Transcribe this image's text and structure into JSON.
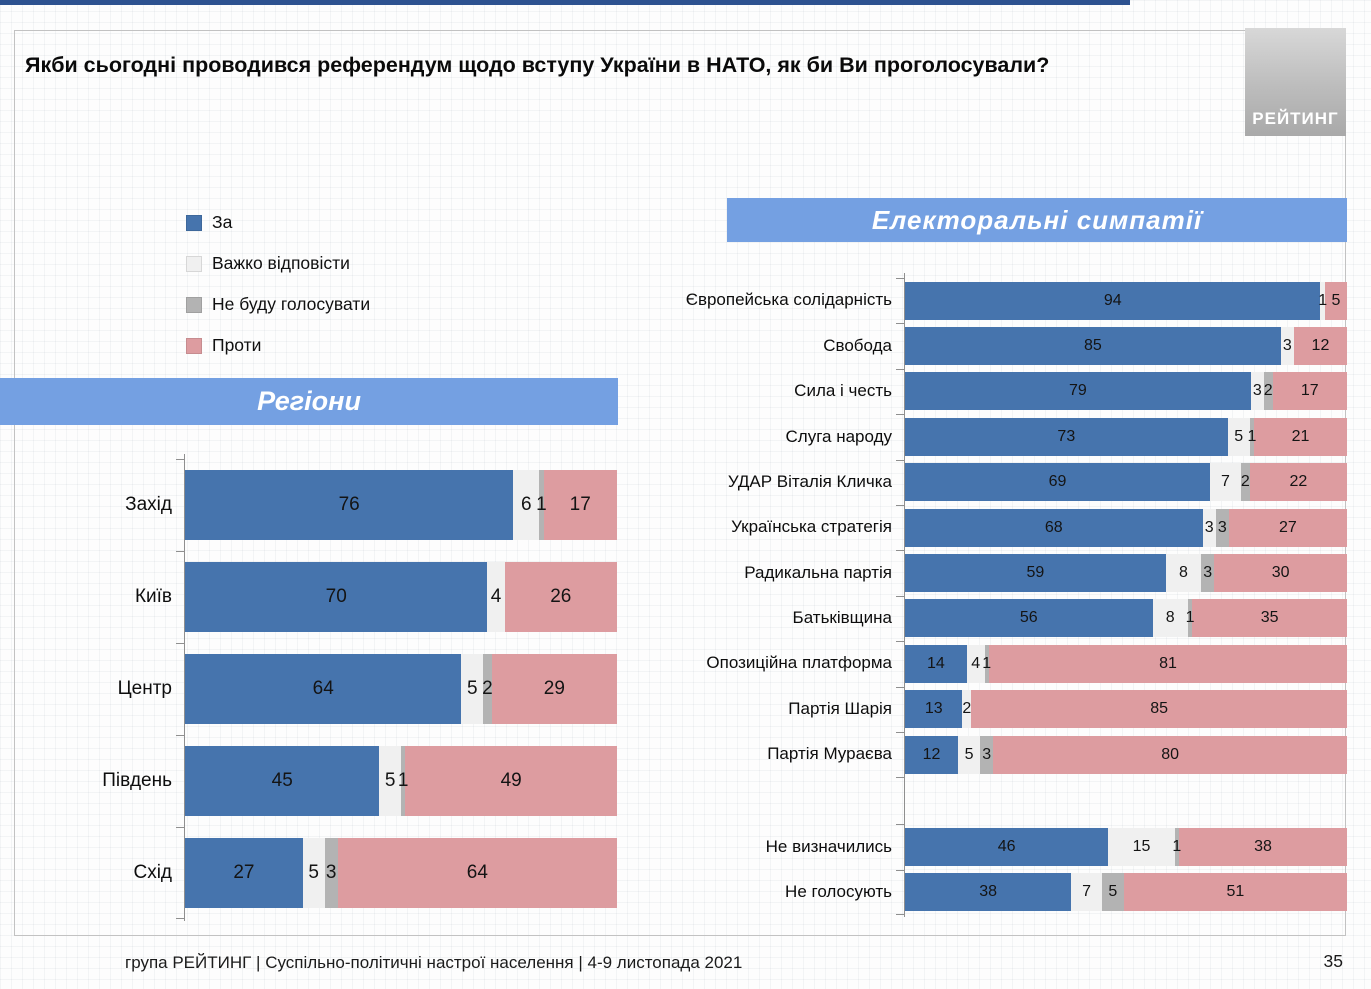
{
  "page": {
    "title": "Якби сьогодні проводився референдум щодо вступу України в НАТО, як би Ви проголосували?",
    "logo": "РЕЙТИНГ",
    "footer": "група РЕЙТИНГ | Суспільно-політичні настрої населення  | 4-9 листопада 2021",
    "page_number": "35"
  },
  "colors": {
    "za": "#4674ad",
    "vazhko": "#f0f0f0",
    "ne_budu": "#b3b3b3",
    "proty": "#dd9ca0",
    "band": "#74a0e2",
    "top_line": "#2e5290"
  },
  "legend": {
    "items": [
      {
        "label": "За",
        "color": "#4674ad"
      },
      {
        "label": "Важко відповісти",
        "color": "#f0f0f0"
      },
      {
        "label": "Не буду голосувати",
        "color": "#b3b3b3"
      },
      {
        "label": "Проти",
        "color": "#dd9ca0"
      }
    ]
  },
  "chart_data": [
    {
      "type": "bar",
      "orientation": "horizontal",
      "stacked": true,
      "title": "Регіони",
      "series_names": [
        "За",
        "Важко відповісти",
        "Не буду голосувати",
        "Проти"
      ],
      "xlim": [
        0,
        100
      ],
      "legend_position": "top-left",
      "rows": [
        {
          "category": "Захід",
          "values": [
            76,
            6,
            1,
            17
          ]
        },
        {
          "category": "Київ",
          "values": [
            70,
            4,
            0,
            26
          ]
        },
        {
          "category": "Центр",
          "values": [
            64,
            5,
            2,
            29
          ]
        },
        {
          "category": "Південь",
          "values": [
            45,
            5,
            1,
            49
          ]
        },
        {
          "category": "Схід",
          "values": [
            27,
            5,
            3,
            64
          ]
        }
      ]
    },
    {
      "type": "bar",
      "orientation": "horizontal",
      "stacked": true,
      "title": "Електоральні симпатії",
      "series_names": [
        "За",
        "Важко відповісти",
        "Не буду голосувати",
        "Проти"
      ],
      "xlim": [
        0,
        100
      ],
      "rows": [
        {
          "category": "Європейська солідарність",
          "values": [
            94,
            1,
            0,
            5
          ]
        },
        {
          "category": "Свобода",
          "values": [
            85,
            3,
            0,
            12
          ]
        },
        {
          "category": "Сила і честь",
          "values": [
            79,
            3,
            2,
            17
          ]
        },
        {
          "category": "Слуга народу",
          "values": [
            73,
            5,
            1,
            21
          ]
        },
        {
          "category": "УДАР Віталія Кличка",
          "values": [
            69,
            7,
            2,
            22
          ]
        },
        {
          "category": "Українська стратегія",
          "values": [
            68,
            3,
            3,
            27
          ]
        },
        {
          "category": "Радикальна партія",
          "values": [
            59,
            8,
            3,
            30
          ]
        },
        {
          "category": "Батьківщина",
          "values": [
            56,
            8,
            1,
            35
          ]
        },
        {
          "category": "Опозиційна платформа",
          "values": [
            14,
            4,
            1,
            81
          ]
        },
        {
          "category": "Партія Шарія",
          "values": [
            13,
            2,
            0,
            85
          ]
        },
        {
          "category": "Партія Мураєва",
          "values": [
            12,
            5,
            3,
            80
          ]
        },
        {
          "spacer": true
        },
        {
          "category": "Не визначились",
          "values": [
            46,
            15,
            1,
            38
          ]
        },
        {
          "category": "Не голосують",
          "values": [
            38,
            7,
            5,
            51
          ]
        }
      ]
    }
  ]
}
